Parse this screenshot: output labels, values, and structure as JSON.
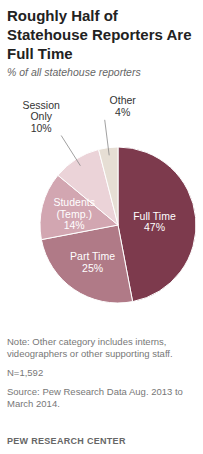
{
  "chart_data": {
    "type": "pie",
    "title": "Roughly Half of Statehouse Reporters Are Full Time",
    "subtitle": "% of all statehouse reporters",
    "categories": [
      "Full Time",
      "Part Time",
      "Students (Temp.)",
      "Session Only",
      "Other"
    ],
    "values": [
      47,
      25,
      14,
      10,
      4
    ],
    "value_labels": [
      "47%",
      "25%",
      "14%",
      "10%",
      "4%"
    ],
    "colors": [
      "#7d3a4d",
      "#b07a87",
      "#d2a6b1",
      "#ebd3d8",
      "#e6ded4"
    ],
    "data_labels": true,
    "note": "Note: Other category includes interns, videographers or other supporting staff.",
    "sample": "N=1,592",
    "source": "Source: Pew Research Data Aug. 2013 to March 2014.",
    "credit": "PEW RESEARCH CENTER"
  }
}
